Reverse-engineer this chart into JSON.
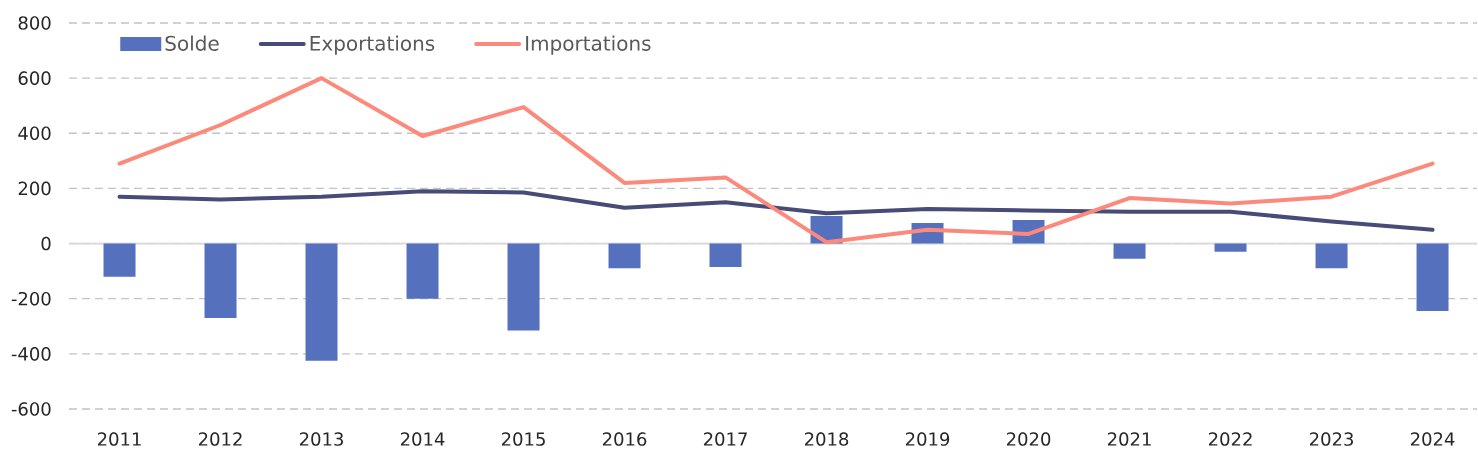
{
  "chart_data": {
    "type": "bar",
    "categories": [
      "2011",
      "2012",
      "2013",
      "2014",
      "2015",
      "2016",
      "2017",
      "2018",
      "2019",
      "2020",
      "2021",
      "2022",
      "2023",
      "2024"
    ],
    "series": [
      {
        "name": "Solde",
        "color": "#5570bd",
        "values": [
          -120,
          -270,
          -425,
          -200,
          -315,
          -90,
          -85,
          100,
          75,
          85,
          -55,
          -30,
          -90,
          -245
        ]
      },
      {
        "name": "Exportations",
        "type": "line",
        "color": "#474b78",
        "values": [
          170,
          160,
          170,
          190,
          185,
          130,
          150,
          110,
          125,
          120,
          115,
          115,
          80,
          50
        ]
      },
      {
        "name": "Importations",
        "type": "line",
        "color": "#fc8a7c",
        "values": [
          290,
          430,
          600,
          390,
          495,
          220,
          240,
          5,
          50,
          35,
          165,
          145,
          170,
          290
        ]
      }
    ],
    "ylim": [
      -600,
      800
    ],
    "yticks": [
      -600,
      -400,
      -200,
      0,
      200,
      400,
      600,
      800
    ],
    "grid": "y",
    "legend": "top left"
  }
}
